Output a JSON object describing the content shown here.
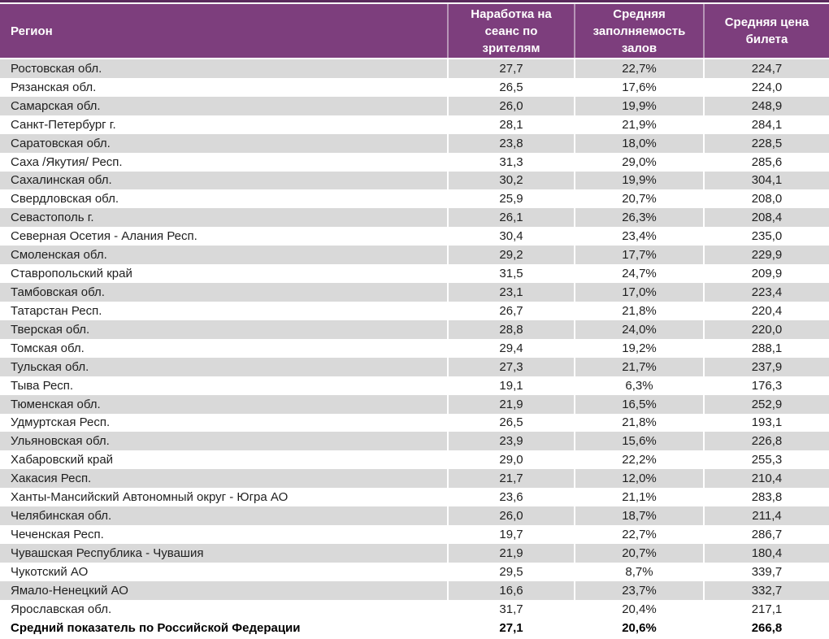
{
  "colors": {
    "header_bg": "#7d3e7d",
    "accent_border": "#5a2a5c",
    "stripe": "#d9d9d9",
    "text": "#1f1f1f"
  },
  "table": {
    "columns": [
      {
        "label": "Регион"
      },
      {
        "label": "Наработка на сеанс по зрителям"
      },
      {
        "label": "Средняя заполняемость залов"
      },
      {
        "label": "Средняя цена билета"
      }
    ],
    "rows": [
      [
        "Ростовская обл.",
        "27,7",
        "22,7%",
        "224,7"
      ],
      [
        "Рязанская обл.",
        "26,5",
        "17,6%",
        "224,0"
      ],
      [
        "Самарская обл.",
        "26,0",
        "19,9%",
        "248,9"
      ],
      [
        "Санкт-Петербург г.",
        "28,1",
        "21,9%",
        "284,1"
      ],
      [
        "Саратовская обл.",
        "23,8",
        "18,0%",
        "228,5"
      ],
      [
        "Саха /Якутия/ Респ.",
        "31,3",
        "29,0%",
        "285,6"
      ],
      [
        "Сахалинская обл.",
        "30,2",
        "19,9%",
        "304,1"
      ],
      [
        "Свердловская обл.",
        "25,9",
        "20,7%",
        "208,0"
      ],
      [
        "Севастополь г.",
        "26,1",
        "26,3%",
        "208,4"
      ],
      [
        "Северная Осетия - Алания Респ.",
        "30,4",
        "23,4%",
        "235,0"
      ],
      [
        "Смоленская обл.",
        "29,2",
        "17,7%",
        "229,9"
      ],
      [
        "Ставропольский край",
        "31,5",
        "24,7%",
        "209,9"
      ],
      [
        "Тамбовская обл.",
        "23,1",
        "17,0%",
        "223,4"
      ],
      [
        "Татарстан Респ.",
        "26,7",
        "21,8%",
        "220,4"
      ],
      [
        "Тверская обл.",
        "28,8",
        "24,0%",
        "220,0"
      ],
      [
        "Томская обл.",
        "29,4",
        "19,2%",
        "288,1"
      ],
      [
        "Тульская обл.",
        "27,3",
        "21,7%",
        "237,9"
      ],
      [
        "Тыва Респ.",
        "19,1",
        "6,3%",
        "176,3"
      ],
      [
        "Тюменская обл.",
        "21,9",
        "16,5%",
        "252,9"
      ],
      [
        "Удмуртская Респ.",
        "26,5",
        "21,8%",
        "193,1"
      ],
      [
        "Ульяновская обл.",
        "23,9",
        "15,6%",
        "226,8"
      ],
      [
        "Хабаровский край",
        "29,0",
        "22,2%",
        "255,3"
      ],
      [
        "Хакасия Респ.",
        "21,7",
        "12,0%",
        "210,4"
      ],
      [
        "Ханты-Мансийский Автономный округ - Югра АО",
        "23,6",
        "21,1%",
        "283,8"
      ],
      [
        "Челябинская обл.",
        "26,0",
        "18,7%",
        "211,4"
      ],
      [
        "Чеченская Респ.",
        "19,7",
        "22,7%",
        "286,7"
      ],
      [
        "Чувашская Республика - Чувашия",
        "21,9",
        "20,7%",
        "180,4"
      ],
      [
        "Чукотский АО",
        "29,5",
        "8,7%",
        "339,7"
      ],
      [
        "Ямало-Ненецкий АО",
        "16,6",
        "23,7%",
        "332,7"
      ],
      [
        "Ярославская обл.",
        "31,7",
        "20,4%",
        "217,1"
      ]
    ],
    "summary_row": [
      "Средний показатель по Российской Федерации",
      "27,1",
      "20,6%",
      "266,8"
    ]
  }
}
